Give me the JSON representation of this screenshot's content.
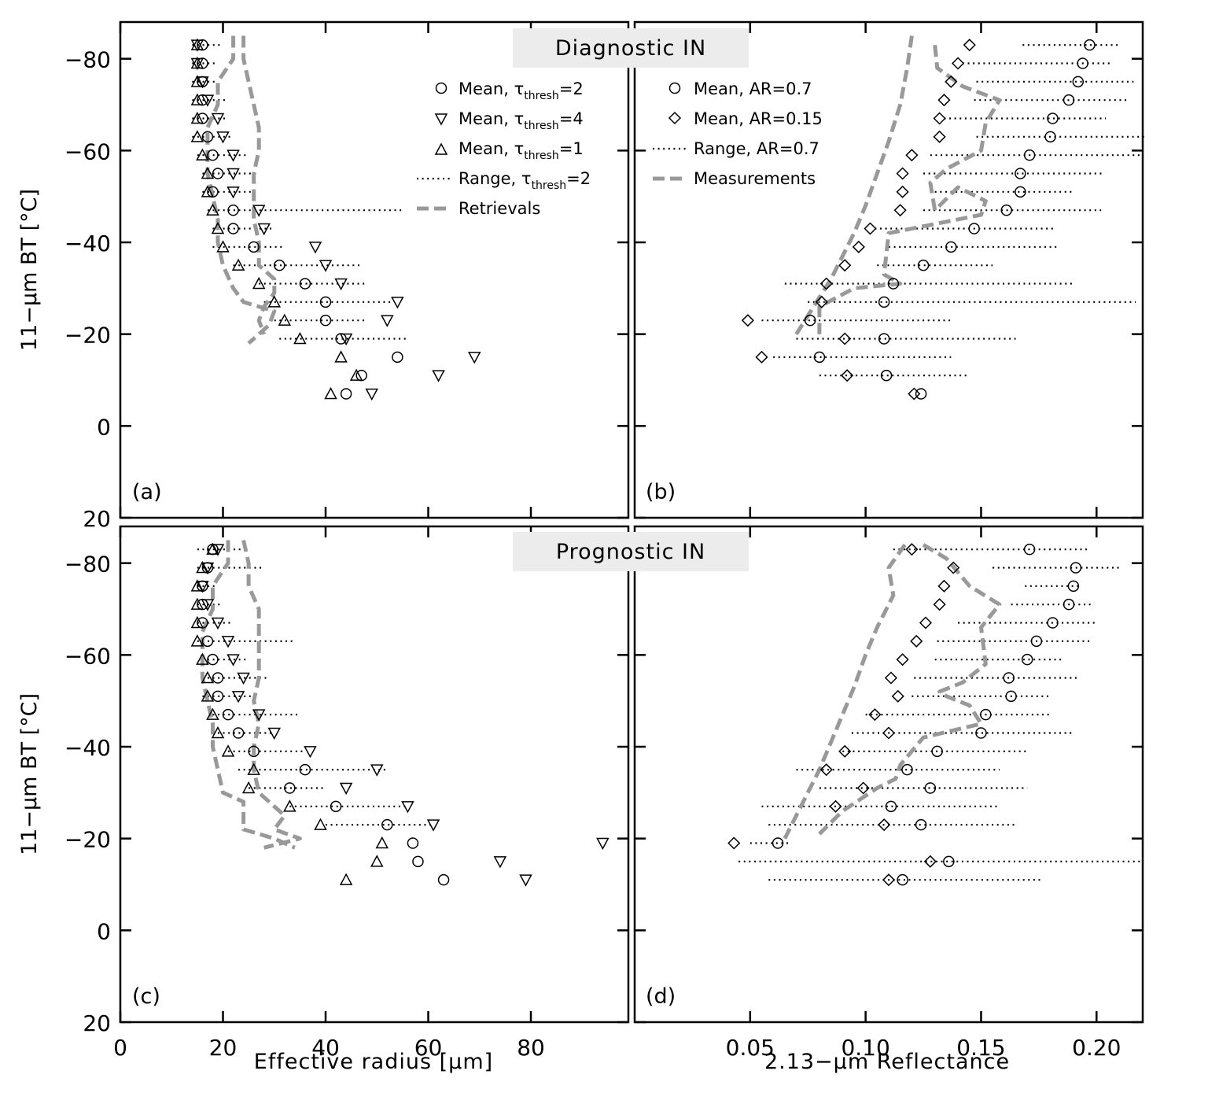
{
  "figure": {
    "banner_top": "Diagnostic IN",
    "banner_bottom": "Prognostic IN",
    "ylabel": "11−μm BT [°C]",
    "xlabel_left": "Effective radius [μm]",
    "xlabel_right": "2.13−μm Reflectance",
    "colors": {
      "measure": "#999999",
      "banner": "#ececec",
      "ink": "#000000"
    },
    "legend_left": [
      {
        "marker": "circle",
        "text": "Mean, τ",
        "sub": "thresh",
        "tail": "=2"
      },
      {
        "marker": "tri-down",
        "text": "Mean, τ",
        "sub": "thresh",
        "tail": "=4"
      },
      {
        "marker": "tri-up",
        "text": "Mean, τ",
        "sub": "thresh",
        "tail": "=1"
      },
      {
        "marker": "dots",
        "text": "Range, τ",
        "sub": "thresh",
        "tail": "=2"
      },
      {
        "marker": "dash",
        "text": "Retrievals",
        "sub": "",
        "tail": ""
      }
    ],
    "legend_right": [
      {
        "marker": "circle",
        "text": "Mean, AR=0.7",
        "sub": "",
        "tail": ""
      },
      {
        "marker": "diamond",
        "text": "Mean, AR=0.15",
        "sub": "",
        "tail": ""
      },
      {
        "marker": "dots",
        "text": "Range, AR=0.7",
        "sub": "",
        "tail": ""
      },
      {
        "marker": "dash",
        "text": "Measurements",
        "sub": "",
        "tail": ""
      }
    ]
  },
  "chart_data": [
    {
      "panel": "(a)",
      "type": "scatter",
      "xlim": [
        0,
        99
      ],
      "ylim": [
        20,
        -88
      ],
      "xticks": [
        0,
        20,
        40,
        60,
        80
      ],
      "xticklabels": [
        "0",
        "20",
        "40",
        "60",
        "80"
      ],
      "yticks": [
        -80,
        -60,
        -40,
        -20,
        0,
        20
      ],
      "yticklabels": [
        "−80",
        "−60",
        "−40",
        "−20",
        "0",
        "20"
      ],
      "y": [
        -83,
        -79,
        -75,
        -71,
        -67,
        -63,
        -59,
        -55,
        -51,
        -47,
        -43,
        -39,
        -35,
        -31,
        -27,
        -23,
        -19,
        -15,
        -11,
        -7
      ],
      "circle": [
        16,
        16,
        16,
        16,
        16,
        17,
        18,
        19,
        18,
        22,
        22,
        26,
        31,
        36,
        40,
        40,
        43,
        54,
        47,
        44
      ],
      "tri_down": [
        15,
        15,
        16,
        17,
        19,
        20,
        22,
        22,
        22,
        27,
        28,
        38,
        40,
        43,
        54,
        52,
        44,
        69,
        62,
        49
      ],
      "tri_up": [
        15,
        15,
        15,
        15,
        15,
        15,
        16,
        17,
        17,
        18,
        19,
        20,
        23,
        27,
        30,
        32,
        35,
        43,
        46,
        41
      ],
      "range": [
        [
          14,
          20
        ],
        [
          14,
          19
        ],
        [
          14,
          19
        ],
        [
          14,
          21
        ],
        [
          14,
          21
        ],
        [
          14,
          22
        ],
        [
          15,
          25
        ],
        [
          16,
          27
        ],
        [
          16,
          26
        ],
        [
          17,
          55
        ],
        [
          18,
          30
        ],
        [
          18,
          32
        ],
        [
          22,
          47
        ],
        [
          27,
          48
        ],
        [
          28,
          53
        ],
        [
          30,
          48
        ],
        [
          31,
          56
        ],
        null,
        null,
        null
      ],
      "retrieval_lines": [
        {
          "x": [
            22,
            22,
            19,
            19,
            17,
            17,
            17,
            18,
            19,
            19,
            20,
            22,
            24,
            30,
            29,
            27,
            25
          ],
          "y": [
            -85,
            -80,
            -75,
            -70,
            -65,
            -60,
            -55,
            -50,
            -45,
            -40,
            -35,
            -30,
            -27,
            -25,
            -22,
            -20,
            -18
          ]
        },
        {
          "x": [
            24,
            24,
            25,
            26,
            27,
            27,
            26,
            26,
            26,
            27,
            27,
            30,
            30,
            28,
            27,
            28
          ],
          "y": [
            -85,
            -80,
            -75,
            -70,
            -65,
            -60,
            -55,
            -50,
            -45,
            -40,
            -35,
            -32,
            -29,
            -26,
            -23,
            -20
          ]
        }
      ]
    },
    {
      "panel": "(b)",
      "type": "scatter",
      "xlim": [
        0,
        0.22
      ],
      "ylim": [
        20,
        -88
      ],
      "xticks": [
        0.05,
        0.1,
        0.15,
        0.2
      ],
      "xticklabels": [
        "0.05",
        "0.10",
        "0.15",
        "0.20"
      ],
      "yticks": [
        -80,
        -60,
        -40,
        -20,
        0,
        20
      ],
      "y": [
        -83,
        -79,
        -75,
        -71,
        -67,
        -63,
        -59,
        -55,
        -51,
        -47,
        -43,
        -39,
        -35,
        -31,
        -27,
        -23,
        -19,
        -15,
        -11,
        -7
      ],
      "circle": [
        0.197,
        0.194,
        0.192,
        0.188,
        0.181,
        0.18,
        0.171,
        0.167,
        0.167,
        0.161,
        0.147,
        0.137,
        0.125,
        0.112,
        0.108,
        0.076,
        0.108,
        0.08,
        0.109,
        0.124
      ],
      "diamond": [
        0.145,
        0.14,
        0.137,
        0.134,
        0.132,
        0.132,
        0.12,
        0.116,
        0.116,
        0.115,
        0.102,
        0.097,
        0.091,
        0.083,
        0.081,
        0.049,
        0.091,
        0.055,
        0.092,
        0.121
      ],
      "range": [
        [
          0.168,
          0.21
        ],
        [
          0.142,
          0.207
        ],
        [
          0.148,
          0.216
        ],
        [
          0.147,
          0.214
        ],
        [
          0.134,
          0.204
        ],
        [
          0.148,
          0.222
        ],
        [
          0.128,
          0.22
        ],
        [
          0.125,
          0.203
        ],
        [
          0.13,
          0.19
        ],
        [
          0.125,
          0.202
        ],
        [
          0.104,
          0.182
        ],
        [
          0.11,
          0.184
        ],
        [
          0.105,
          0.155
        ],
        [
          0.065,
          0.19
        ],
        [
          0.075,
          0.217
        ],
        [
          0.055,
          0.137
        ],
        [
          0.07,
          0.165
        ],
        [
          0.06,
          0.137
        ],
        [
          0.08,
          0.145
        ],
        null
      ],
      "retrieval_lines": [
        {
          "x": [
            0.12,
            0.118,
            0.115,
            0.11,
            0.105,
            0.1,
            0.095,
            0.09,
            0.085,
            0.08,
            0.075,
            0.07
          ],
          "y": [
            -85,
            -78,
            -70,
            -62,
            -55,
            -48,
            -42,
            -37,
            -32,
            -28,
            -24,
            -20
          ]
        },
        {
          "x": [
            0.13,
            0.131,
            0.142,
            0.158,
            0.152,
            0.15,
            0.135,
            0.128,
            0.13,
            0.14,
            0.152,
            0.15,
            0.13,
            0.11,
            0.108,
            0.115,
            0.095,
            0.08,
            0.08
          ],
          "y": [
            -83,
            -78,
            -74,
            -71,
            -66,
            -60,
            -56,
            -53,
            -47,
            -52,
            -49,
            -46,
            -44,
            -42,
            -33,
            -31,
            -30,
            -26,
            -20
          ]
        }
      ]
    },
    {
      "panel": "(c)",
      "type": "scatter",
      "xlim": [
        0,
        99
      ],
      "ylim": [
        20,
        -88
      ],
      "xticks": [
        0,
        20,
        40,
        60,
        80
      ],
      "xticklabels": [
        "0",
        "20",
        "40",
        "60",
        "80"
      ],
      "yticks": [
        -80,
        -60,
        -40,
        -20,
        0,
        20
      ],
      "yticklabels": [
        "−80",
        "−60",
        "−40",
        "−20",
        "0",
        "20"
      ],
      "y": [
        -83,
        -79,
        -75,
        -71,
        -67,
        -63,
        -59,
        -55,
        -51,
        -47,
        -43,
        -39,
        -35,
        -31,
        -27,
        -23,
        -19,
        -15,
        -11
      ],
      "circle": [
        18,
        17,
        16,
        16,
        16,
        17,
        18,
        19,
        19,
        21,
        23,
        26,
        36,
        33,
        42,
        52,
        57,
        58,
        63
      ],
      "tri_down": [
        19,
        17,
        16,
        17,
        19,
        21,
        22,
        24,
        23,
        27,
        30,
        37,
        50,
        44,
        56,
        61,
        94,
        74,
        79
      ],
      "tri_up": [
        18,
        16,
        15,
        15,
        15,
        15,
        16,
        17,
        17,
        18,
        19,
        21,
        26,
        25,
        33,
        39,
        51,
        50,
        44
      ],
      "range": [
        [
          15,
          25
        ],
        [
          15,
          28
        ],
        [
          15,
          19
        ],
        [
          15,
          20
        ],
        [
          15,
          22
        ],
        [
          15,
          34
        ],
        [
          16,
          25
        ],
        [
          17,
          29
        ],
        [
          16,
          27
        ],
        [
          18,
          35
        ],
        [
          19,
          30
        ],
        [
          21,
          36
        ],
        [
          23,
          52
        ],
        [
          25,
          40
        ],
        [
          33,
          56
        ],
        [
          40,
          61
        ],
        null,
        null,
        null
      ],
      "retrieval_lines": [
        {
          "x": [
            21,
            21,
            18,
            18,
            16,
            16,
            16,
            17,
            18,
            18,
            19,
            20,
            24,
            24,
            24,
            30,
            34
          ],
          "y": [
            -85,
            -80,
            -75,
            -70,
            -65,
            -60,
            -55,
            -50,
            -45,
            -40,
            -35,
            -30,
            -28,
            -25,
            -22,
            -20,
            -18
          ]
        },
        {
          "x": [
            24,
            25,
            25,
            27,
            27,
            27,
            27,
            26,
            27,
            26,
            26,
            27,
            29,
            32,
            30,
            35,
            28
          ],
          "y": [
            -85,
            -80,
            -75,
            -70,
            -65,
            -60,
            -55,
            -50,
            -45,
            -40,
            -35,
            -30,
            -28,
            -25,
            -22,
            -20,
            -18
          ]
        }
      ]
    },
    {
      "panel": "(d)",
      "type": "scatter",
      "xlim": [
        0,
        0.22
      ],
      "ylim": [
        20,
        -88
      ],
      "xticks": [
        0.05,
        0.1,
        0.15,
        0.2
      ],
      "xticklabels": [
        "0.05",
        "0.10",
        "0.15",
        "0.20"
      ],
      "yticks": [
        -80,
        -60,
        -40,
        -20,
        0,
        20
      ],
      "y": [
        -83,
        -79,
        -75,
        -71,
        -67,
        -63,
        -59,
        -55,
        -51,
        -47,
        -43,
        -39,
        -35,
        -31,
        -27,
        -23,
        -19,
        -15,
        -11
      ],
      "circle": [
        0.171,
        0.191,
        0.19,
        0.188,
        0.181,
        0.174,
        0.17,
        0.162,
        0.163,
        0.152,
        0.15,
        0.131,
        0.118,
        0.128,
        0.111,
        0.124,
        0.062,
        0.136,
        0.116
      ],
      "diamond": [
        0.12,
        0.138,
        0.134,
        0.132,
        0.126,
        0.122,
        0.116,
        0.111,
        0.114,
        0.104,
        0.11,
        0.091,
        0.083,
        0.099,
        0.087,
        0.108,
        0.043,
        0.128,
        0.11
      ],
      "range": [
        [
          0.112,
          0.196
        ],
        [
          0.155,
          0.21
        ],
        [
          0.169,
          0.192
        ],
        [
          0.163,
          0.199
        ],
        [
          0.14,
          0.2
        ],
        [
          0.131,
          0.197
        ],
        [
          0.13,
          0.186
        ],
        [
          0.121,
          0.192
        ],
        [
          0.12,
          0.18
        ],
        [
          0.1,
          0.18
        ],
        [
          0.094,
          0.19
        ],
        [
          0.09,
          0.17
        ],
        [
          0.07,
          0.158
        ],
        [
          0.08,
          0.17
        ],
        [
          0.055,
          0.157
        ],
        [
          0.058,
          0.165
        ],
        [
          0.05,
          0.068
        ],
        [
          0.045,
          0.22
        ],
        [
          0.058,
          0.176
        ]
      ],
      "retrieval_lines": [
        {
          "x": [
            0.117,
            0.11,
            0.112,
            0.105,
            0.1,
            0.095,
            0.09,
            0.085,
            0.08,
            0.075,
            0.07,
            0.065
          ],
          "y": [
            -84,
            -79,
            -73,
            -66,
            -60,
            -53,
            -47,
            -41,
            -35,
            -30,
            -25,
            -20
          ]
        },
        {
          "x": [
            0.125,
            0.135,
            0.145,
            0.158,
            0.15,
            0.152,
            0.142,
            0.132,
            0.135,
            0.145,
            0.15,
            0.125,
            0.115,
            0.113,
            0.105,
            0.09,
            0.08
          ],
          "y": [
            -84,
            -81,
            -75,
            -71,
            -66,
            -58,
            -54,
            -52,
            -51,
            -49,
            -45,
            -42,
            -36,
            -33,
            -31,
            -26,
            -21
          ]
        }
      ]
    }
  ]
}
